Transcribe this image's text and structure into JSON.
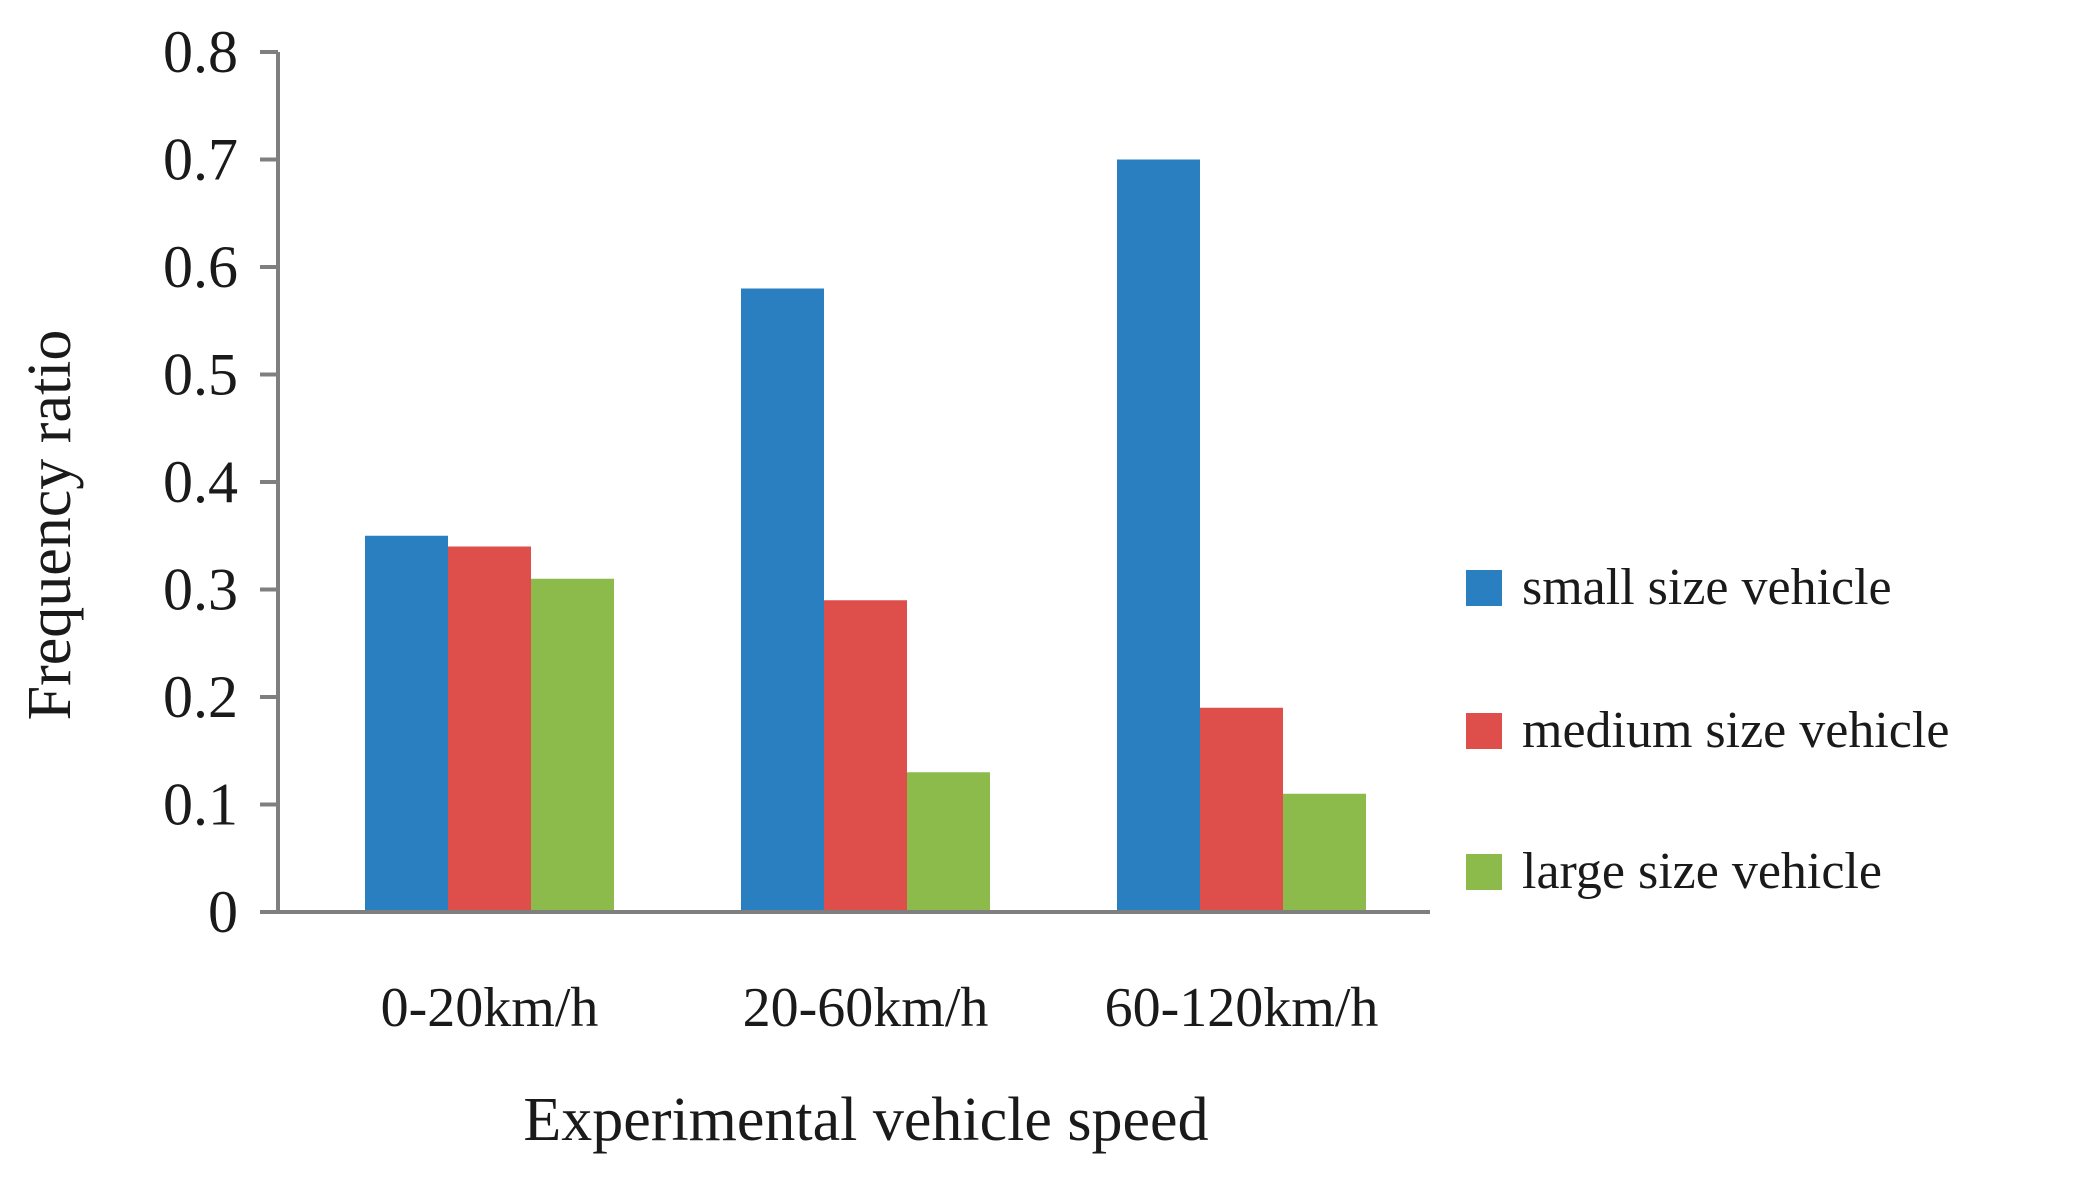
{
  "chart_data": {
    "type": "bar",
    "title": "",
    "xlabel": "Experimental vehicle speed",
    "ylabel": "Frequency ratio",
    "ylim": [
      0,
      0.8
    ],
    "yticks": [
      "0",
      "0.1",
      "0.2",
      "0.3",
      "0.4",
      "0.5",
      "0.6",
      "0.7",
      "0.8"
    ],
    "categories": [
      "0-20km/h",
      "20-60km/h",
      "60-120km/h"
    ],
    "series": [
      {
        "name": "small size vehicle",
        "color": "#2a7fc0",
        "values": [
          0.35,
          0.58,
          0.7
        ]
      },
      {
        "name": "medium size vehicle",
        "color": "#de4f4c",
        "values": [
          0.34,
          0.29,
          0.19
        ]
      },
      {
        "name": "large size vehicle",
        "color": "#8cbb4c",
        "values": [
          0.31,
          0.13,
          0.11
        ]
      }
    ],
    "grid": false,
    "legend_position": "right"
  }
}
